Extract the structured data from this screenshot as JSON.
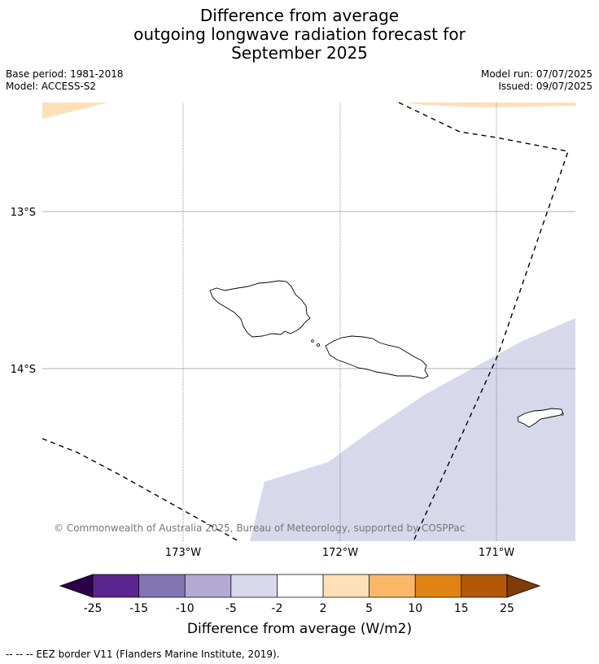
{
  "title": {
    "line1": "Difference from average",
    "line2": "outgoing longwave radiation forecast for",
    "line3": "September 2025"
  },
  "meta": {
    "base_period": "Base period: 1981-2018",
    "model": "Model: ACCESS-S2",
    "model_run": "Model run: 07/07/2025",
    "issued": "Issued: 09/07/2025"
  },
  "map": {
    "lat_labels": [
      "13°S",
      "14°S"
    ],
    "lon_labels": [
      "173°W",
      "172°W",
      "171°W"
    ],
    "copyright": "© Commonwealth of Australia 2025, Bureau of Meteorology, supported by COSPPac",
    "fill_colors": {
      "light_orange": "#fde0b8",
      "light_purple": "#d8d8eb"
    }
  },
  "colorbar": {
    "ticks": [
      "-25",
      "-15",
      "-10",
      "-5",
      "-2",
      "2",
      "5",
      "10",
      "15",
      "25"
    ],
    "colors": [
      "#5a2590",
      "#8275b2",
      "#b2aad2",
      "#d8d8eb",
      "#ffffff",
      "#fde0b8",
      "#fbb768",
      "#e08214",
      "#b35806"
    ],
    "low_extend_color": "#2d004b",
    "high_extend_color": "#7f3b08",
    "label": "Difference from average (W/m2)"
  },
  "footnote": "--  --  -- EEZ border V11 (Flanders Marine Institute, 2019)."
}
